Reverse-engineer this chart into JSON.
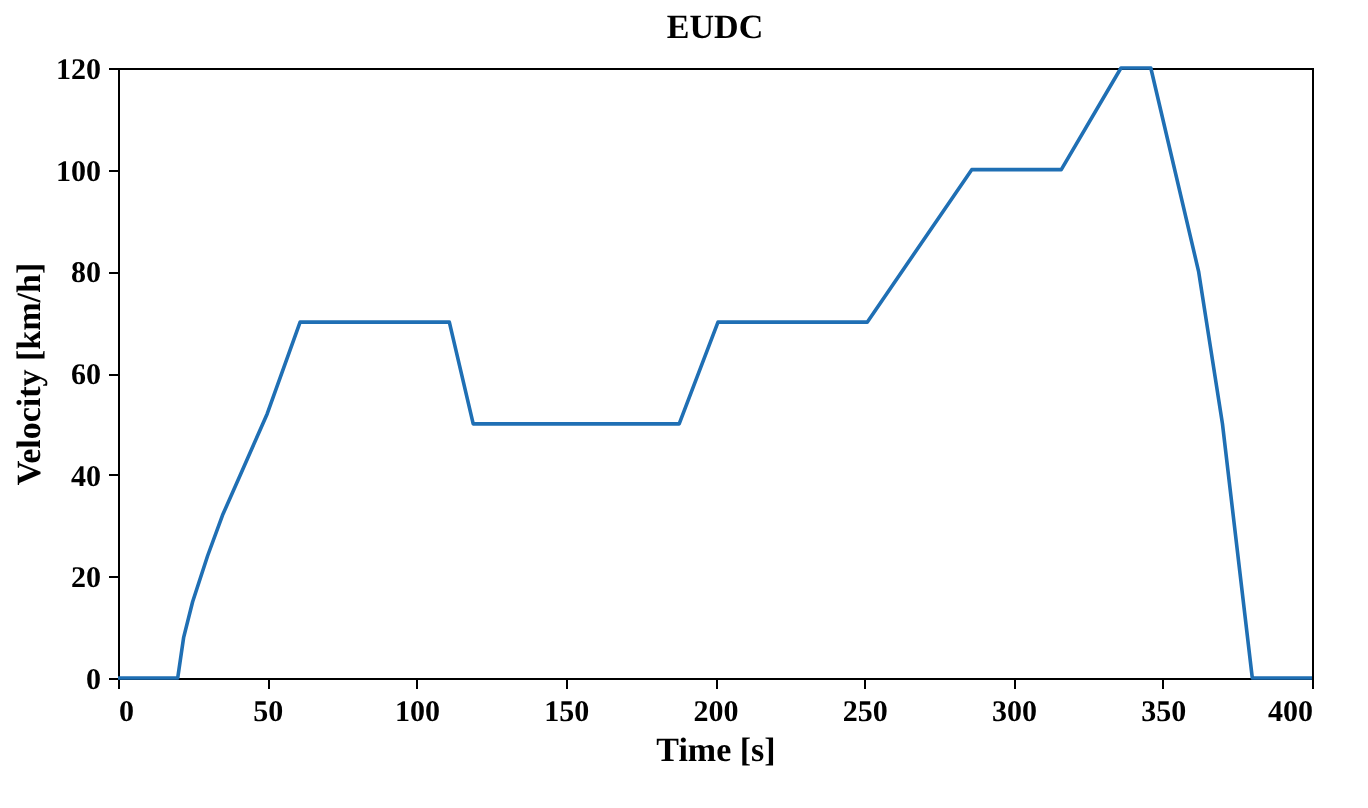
{
  "chart_data": {
    "type": "line",
    "title": "EUDC",
    "xlabel": "Time [s]",
    "ylabel": "Velocity [km/h]",
    "x": [
      0,
      20,
      22,
      25,
      30,
      35,
      41,
      50,
      61,
      111,
      119,
      188,
      201,
      251,
      286,
      316,
      336,
      346,
      362,
      370,
      380,
      400
    ],
    "series": [
      {
        "color": "#1f6fb4",
        "values": [
          0,
          0,
          8,
          15,
          24,
          32,
          40,
          52,
          70,
          70,
          50,
          50,
          70,
          70,
          100,
          100,
          120,
          120,
          80,
          50,
          0,
          0
        ]
      }
    ],
    "xlim": [
      0,
      400
    ],
    "xticks": [
      0,
      50,
      100,
      150,
      200,
      250,
      300,
      350,
      400
    ],
    "ylim": [
      0,
      120
    ],
    "yticks": [
      0,
      20,
      40,
      60,
      80,
      100,
      120
    ],
    "grid": false,
    "marker": "none",
    "line_style": "solid"
  }
}
